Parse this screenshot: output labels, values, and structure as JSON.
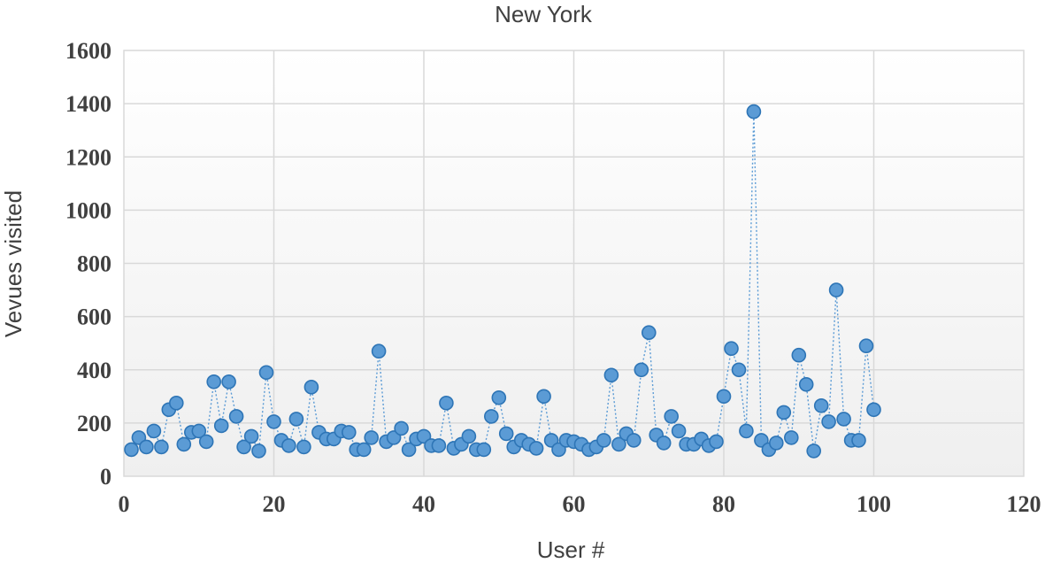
{
  "chart_data": {
    "type": "scatter",
    "title": "New York",
    "xlabel": "User #",
    "ylabel": "Vevues visited",
    "xlim": [
      0,
      120
    ],
    "ylim": [
      0,
      1600
    ],
    "x_ticks": [
      0,
      20,
      40,
      60,
      80,
      100,
      120
    ],
    "y_ticks": [
      0,
      200,
      400,
      600,
      800,
      1000,
      1200,
      1400,
      1600
    ],
    "grid": true,
    "marker_color": "#5b9bd5",
    "marker_edge_color": "#2e75b6",
    "line_style": "dotted",
    "series": [
      {
        "x": [
          1,
          2,
          3,
          4,
          5,
          6,
          7,
          8,
          9,
          10,
          11,
          12,
          13,
          14,
          15,
          16,
          17,
          18,
          19,
          20,
          21,
          22,
          23,
          24,
          25,
          26,
          27,
          28,
          29,
          30,
          31,
          32,
          33,
          34,
          35,
          36,
          37,
          38,
          39,
          40,
          41,
          42,
          43,
          44,
          45,
          46,
          47,
          48,
          49,
          50,
          51,
          52,
          53,
          54,
          55,
          56,
          57,
          58,
          59,
          60,
          61,
          62,
          63,
          64,
          65,
          66,
          67,
          68,
          69,
          70,
          71,
          72,
          73,
          74,
          75,
          76,
          77,
          78,
          79,
          80,
          81,
          82,
          83,
          84,
          85,
          86,
          87,
          88,
          89,
          90,
          91,
          92,
          93,
          94,
          95,
          96,
          97,
          98,
          99,
          100
        ],
        "y": [
          100,
          145,
          110,
          170,
          110,
          250,
          275,
          120,
          165,
          170,
          130,
          355,
          190,
          355,
          225,
          110,
          150,
          95,
          390,
          205,
          135,
          115,
          215,
          110,
          335,
          165,
          140,
          140,
          170,
          165,
          100,
          100,
          145,
          470,
          130,
          145,
          180,
          100,
          140,
          150,
          115,
          115,
          275,
          105,
          120,
          150,
          100,
          100,
          225,
          295,
          160,
          110,
          135,
          120,
          105,
          300,
          135,
          100,
          135,
          130,
          120,
          100,
          110,
          135,
          380,
          120,
          160,
          135,
          400,
          540,
          155,
          125,
          225,
          170,
          120,
          120,
          140,
          115,
          130,
          300,
          480,
          400,
          170,
          1370,
          135,
          100,
          125,
          240,
          145,
          455,
          345,
          95,
          265,
          205,
          700,
          215,
          135,
          135,
          490,
          250
        ]
      }
    ]
  }
}
